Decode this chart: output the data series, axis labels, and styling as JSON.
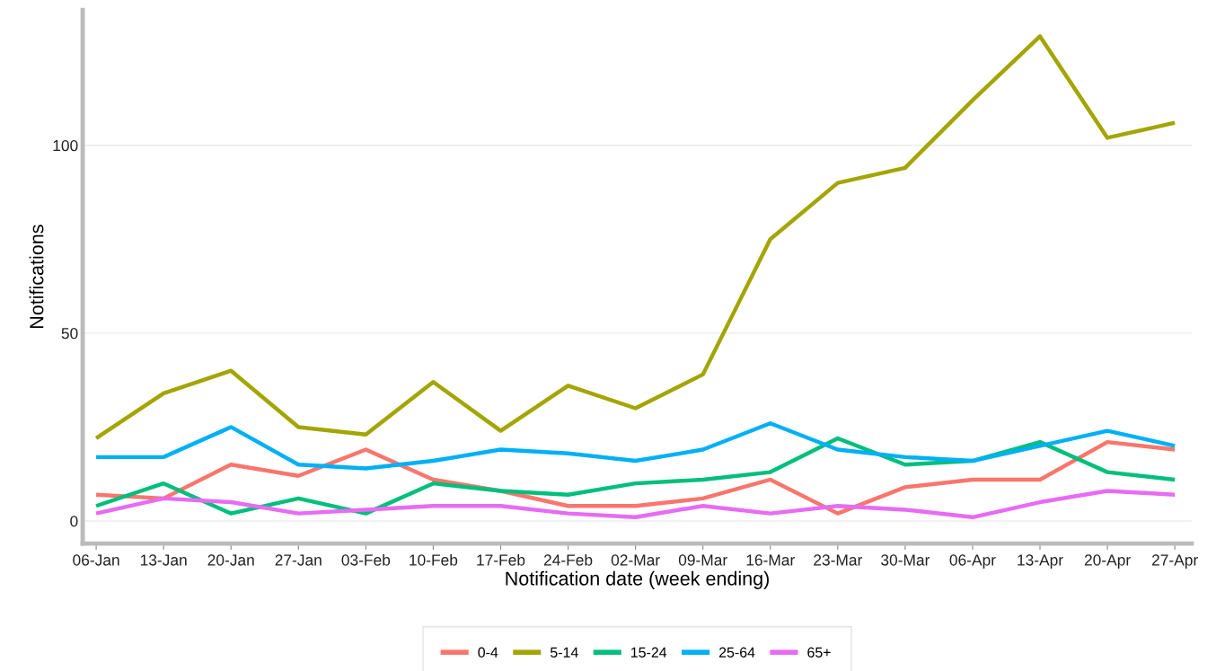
{
  "chart_data": {
    "type": "line",
    "xlabel": "Notification date (week ending)",
    "ylabel": "Notifications",
    "categories": [
      "06-Jan",
      "13-Jan",
      "20-Jan",
      "27-Jan",
      "03-Feb",
      "10-Feb",
      "17-Feb",
      "24-Feb",
      "02-Mar",
      "09-Mar",
      "16-Mar",
      "23-Mar",
      "30-Mar",
      "06-Apr",
      "13-Apr",
      "20-Apr",
      "27-Apr"
    ],
    "series": [
      {
        "name": "0-4",
        "color": "#f8766d",
        "values": [
          7,
          6,
          15,
          12,
          19,
          11,
          8,
          4,
          4,
          6,
          11,
          2,
          9,
          11,
          11,
          21,
          19
        ]
      },
      {
        "name": "5-14",
        "color": "#a3a500",
        "values": [
          22,
          34,
          40,
          25,
          23,
          37,
          24,
          36,
          30,
          39,
          75,
          90,
          94,
          112,
          129,
          102,
          106
        ]
      },
      {
        "name": "15-24",
        "color": "#00bf7d",
        "values": [
          4,
          10,
          2,
          6,
          2,
          10,
          8,
          7,
          10,
          11,
          13,
          22,
          15,
          16,
          21,
          13,
          11
        ]
      },
      {
        "name": "25-64",
        "color": "#00b0f6",
        "values": [
          17,
          17,
          25,
          15,
          14,
          16,
          19,
          18,
          16,
          19,
          26,
          19,
          17,
          16,
          20,
          24,
          20
        ]
      },
      {
        "name": "65+",
        "color": "#e76bf3",
        "values": [
          2,
          6,
          5,
          2,
          3,
          4,
          4,
          2,
          1,
          4,
          2,
          4,
          3,
          1,
          5,
          8,
          7
        ]
      }
    ],
    "ylim": [
      -6,
      136
    ],
    "yticks": [
      0,
      50,
      100
    ],
    "grid": "y",
    "legend": "bottom",
    "marker": "none",
    "line_style": "solid"
  }
}
